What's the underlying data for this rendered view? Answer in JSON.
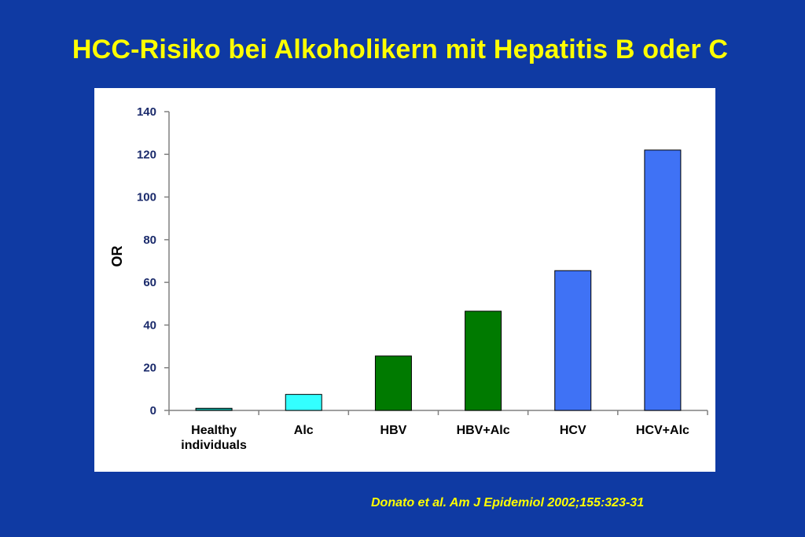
{
  "slide": {
    "title": "HCC-Risiko bei Alkoholikern mit Hepatitis B oder C",
    "citation": "Donato et al. Am J Epidemiol 2002;155:323-31"
  },
  "colors": {
    "background": "#0f3aa3",
    "title": "#ffff00",
    "panel": "#ffffff"
  },
  "chart_data": {
    "type": "bar",
    "title": "",
    "xlabel": "",
    "ylabel": "OR",
    "ylim": [
      0,
      140
    ],
    "yticks": [
      0,
      20,
      40,
      60,
      80,
      100,
      120,
      140
    ],
    "grid": false,
    "legend": "none",
    "categories": [
      [
        "Healthy",
        "individuals"
      ],
      [
        "Alc"
      ],
      [
        "HBV"
      ],
      [
        "HBV+Alc"
      ],
      [
        "HCV"
      ],
      [
        "HCV+Alc"
      ]
    ],
    "values": [
      1,
      7.5,
      25.5,
      46.5,
      65.5,
      122
    ],
    "bar_colors": [
      "#0fa59a",
      "#33ffff",
      "#007a00",
      "#007a00",
      "#3f72f5",
      "#3f72f5"
    ]
  }
}
